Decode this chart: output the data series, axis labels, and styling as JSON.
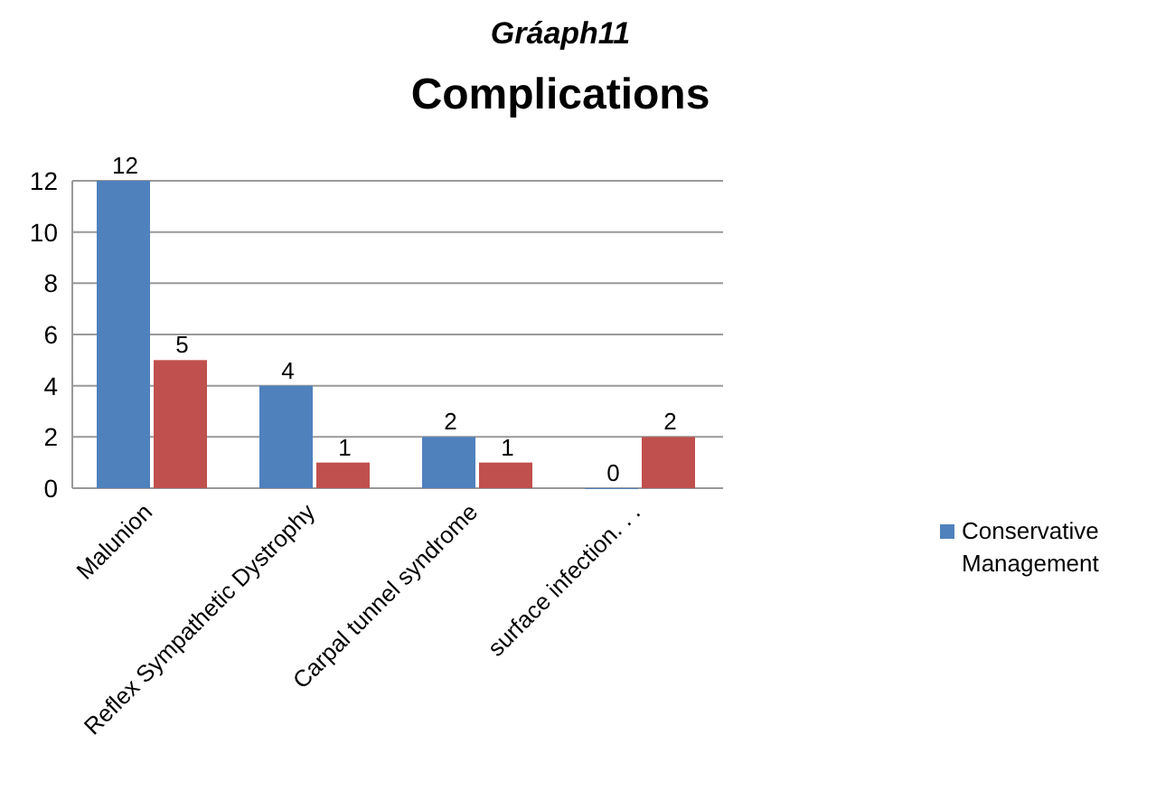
{
  "chart_data": {
    "type": "bar",
    "title": "Complications",
    "subtitle": "Gráaph11",
    "categories": [
      "Malunion",
      "Reflex Sympathetic Dystrophy",
      "Carpal tunnel syndrome",
      "surface infection. . ."
    ],
    "series": [
      {
        "name": "Conservative Management",
        "color": "#4f81bd",
        "values": [
          12,
          4,
          2,
          0
        ]
      },
      {
        "color": "#c0504d",
        "values": [
          5,
          1,
          1,
          2
        ]
      }
    ],
    "ylim": [
      0,
      12
    ],
    "yticks": [
      0,
      2,
      4,
      6,
      8,
      10,
      12
    ],
    "grid": "y",
    "legend": "right",
    "data_labels": true
  }
}
